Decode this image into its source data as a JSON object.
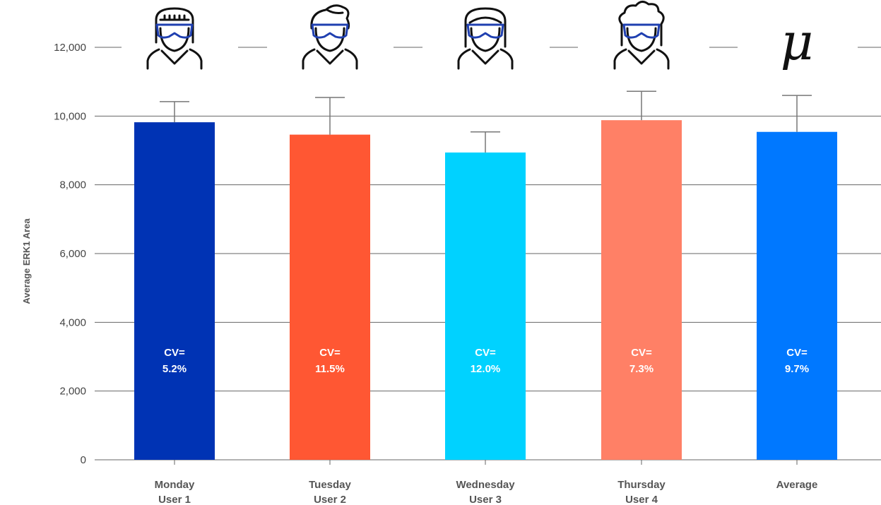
{
  "chart_data": {
    "type": "bar",
    "ylabel": "Average ERK1 Area",
    "ylim": [
      0,
      12000
    ],
    "yticks": [
      0,
      2000,
      4000,
      6000,
      8000,
      10000,
      12000
    ],
    "ytick_labels": [
      "0",
      "2,000",
      "4,000",
      "6,000",
      "8,000",
      "10,000",
      "12,000"
    ],
    "grid": true,
    "categories": [
      {
        "line1": "Monday",
        "line2": "User 1"
      },
      {
        "line1": "Tuesday",
        "line2": "User 2"
      },
      {
        "line1": "Wednesday",
        "line2": "User 3"
      },
      {
        "line1": "Thursday",
        "line2": "User 4"
      },
      {
        "line1": "Average",
        "line2": ""
      }
    ],
    "values": [
      9820,
      9460,
      8940,
      9880,
      9540
    ],
    "error_upper": [
      10420,
      10540,
      9540,
      10720,
      10600
    ],
    "cv_labels": [
      {
        "line1": "CV=",
        "line2": "5.2%"
      },
      {
        "line1": "CV=",
        "line2": "11.5%"
      },
      {
        "line1": "CV=",
        "line2": "12.0%"
      },
      {
        "line1": "CV=",
        "line2": "7.3%"
      },
      {
        "line1": "CV=",
        "line2": "9.7%"
      }
    ],
    "colors": [
      "#0033b4",
      "#ff5733",
      "#00d2ff",
      "#ff8066",
      "#0078ff"
    ],
    "header_icons": [
      "scientist-straight-hair-icon",
      "scientist-short-hair-icon",
      "scientist-long-hair-icon",
      "scientist-curly-hair-icon",
      "mu"
    ],
    "mu_symbol": "μ"
  }
}
